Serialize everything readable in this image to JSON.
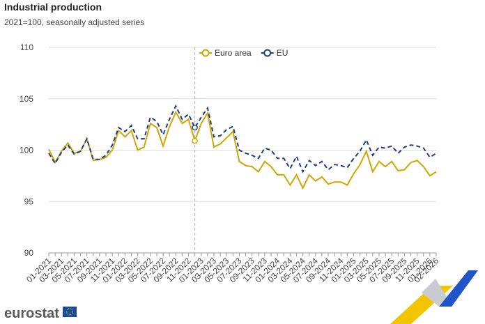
{
  "chart_data": {
    "type": "line",
    "title": "Industrial production",
    "subtitle": "2021=100, seasonally adjusted series",
    "categories": [
      "01-2021",
      null,
      "03-2021",
      null,
      "05-2021",
      null,
      "07-2021",
      null,
      "09-2021",
      null,
      "11-2021",
      null,
      "01-2022",
      null,
      "03-2022",
      null,
      "05-2022",
      null,
      "07-2022",
      null,
      "09-2022",
      null,
      "11-2022",
      null,
      "01-2023",
      null,
      "03-2023",
      null,
      "05-2023",
      null,
      "07-2023",
      null,
      "09-2023",
      null,
      "11-2023",
      null,
      "01-2024",
      null,
      "03-2024",
      null,
      "05-2024",
      null,
      "07-2024",
      null,
      "09-2024",
      null,
      "11-2024",
      null,
      "01-2025",
      null,
      "03-2025",
      null,
      "05-2025",
      null,
      "07-2025",
      null,
      "09-2025",
      null,
      "11-2025",
      null,
      "01-2026",
      "02-2026"
    ],
    "series": [
      {
        "name": "Euro area",
        "color": "#cfa600",
        "dashed": false,
        "values": [
          100.1,
          98.8,
          99.9,
          100.7,
          99.7,
          99.9,
          101.1,
          99.0,
          99.1,
          99.3,
          100.0,
          101.9,
          101.3,
          101.9,
          100.0,
          100.3,
          102.6,
          102.2,
          100.4,
          102.3,
          103.7,
          102.6,
          103.0,
          100.9,
          102.6,
          103.6,
          100.3,
          100.6,
          101.2,
          101.8,
          98.9,
          98.5,
          98.4,
          97.9,
          98.9,
          98.4,
          97.6,
          97.6,
          96.6,
          97.6,
          96.3,
          97.6,
          97.0,
          97.4,
          96.7,
          96.9,
          96.9,
          96.6,
          97.7,
          98.6,
          99.9,
          97.9,
          98.9,
          98.4,
          98.9,
          98.0,
          98.1,
          98.8,
          99.0,
          98.4,
          97.5,
          97.9
        ]
      },
      {
        "name": "EU",
        "color": "#1f3c88",
        "dashed": true,
        "values": [
          99.7,
          98.7,
          99.8,
          100.5,
          99.6,
          99.9,
          101.1,
          99.1,
          99.1,
          99.5,
          100.5,
          102.2,
          101.8,
          102.4,
          101.1,
          101.1,
          103.2,
          102.8,
          101.5,
          103.0,
          104.3,
          103.0,
          103.5,
          102.2,
          103.2,
          104.1,
          101.3,
          101.4,
          102.0,
          102.3,
          100.0,
          99.7,
          99.5,
          99.2,
          100.2,
          100.0,
          99.2,
          99.2,
          98.2,
          99.4,
          97.9,
          99.0,
          98.5,
          98.9,
          98.1,
          98.6,
          98.5,
          98.3,
          99.2,
          99.9,
          101.0,
          99.5,
          100.3,
          100.2,
          100.4,
          99.7,
          100.3,
          100.5,
          100.4,
          100.2,
          99.3,
          99.7
        ]
      }
    ],
    "ylim": [
      90,
      110
    ],
    "yticks": [
      90,
      95,
      100,
      105,
      110
    ],
    "grid": true,
    "legend": "top",
    "highlight": 23
  },
  "logo": "eurostat"
}
